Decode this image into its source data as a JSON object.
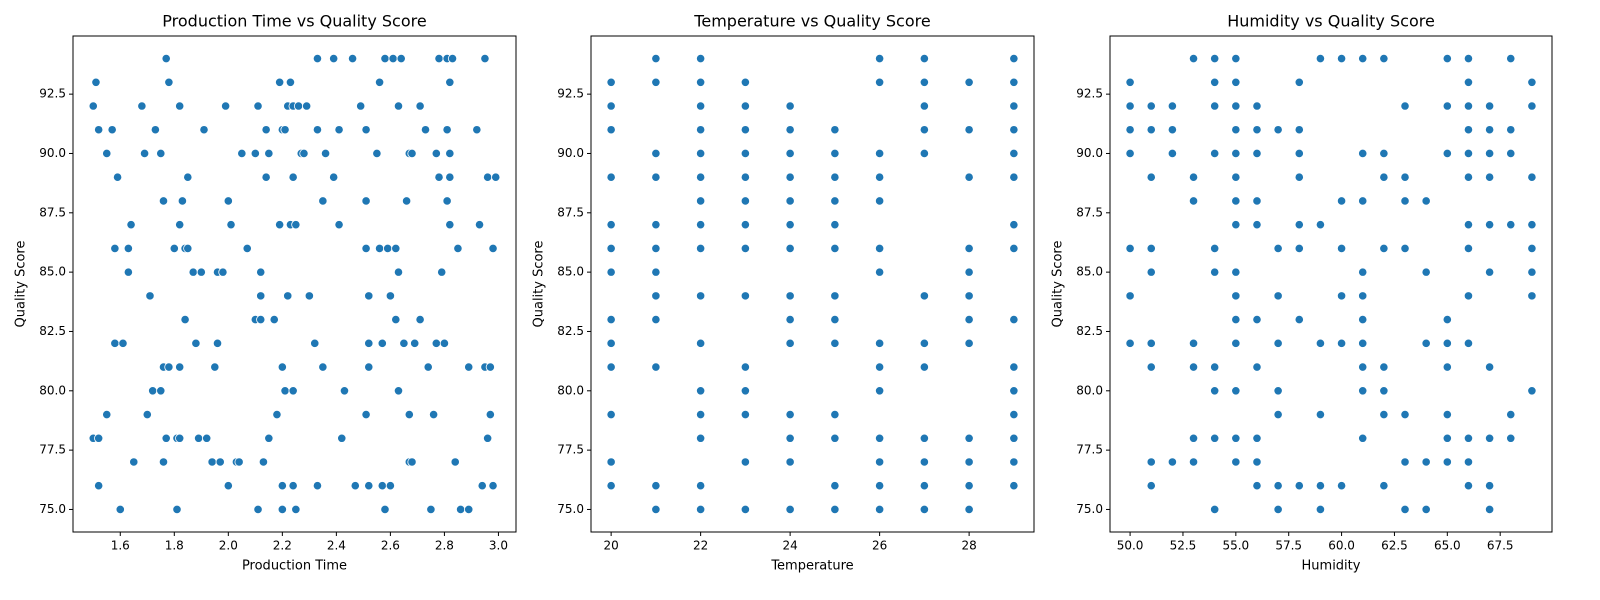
{
  "chart_data": [
    {
      "type": "scatter",
      "title": "Production Time vs Quality Score",
      "x_label": "Production Time",
      "y_label": "Quality Score",
      "color": "#1f77b4",
      "x": [
        1.5,
        1.51,
        1.52,
        1.55,
        1.57,
        1.59,
        1.58,
        1.63,
        1.64,
        1.63,
        1.58,
        1.61,
        1.55,
        1.5,
        1.52,
        1.52,
        1.6,
        1.65,
        1.68,
        1.69,
        1.71,
        1.72,
        1.7,
        1.73,
        1.75,
        1.76,
        1.77,
        1.78,
        1.8,
        1.76,
        1.78,
        1.75,
        1.76,
        1.77,
        1.81,
        1.82,
        1.81,
        1.82,
        1.82,
        1.83,
        1.82,
        1.84,
        1.85,
        1.85,
        1.84,
        1.87,
        1.88,
        1.89,
        1.91,
        1.9,
        1.92,
        1.94,
        1.95,
        1.96,
        1.96,
        1.97,
        1.98,
        1.99,
        2.0,
        2.01,
        2.0,
        2.03,
        2.04,
        2.05,
        2.07,
        2.1,
        2.1,
        2.11,
        2.11,
        2.12,
        2.12,
        2.12,
        2.13,
        2.14,
        2.14,
        2.15,
        2.15,
        2.17,
        2.18,
        2.19,
        2.19,
        2.2,
        2.21,
        2.2,
        2.21,
        2.2,
        2.2,
        2.22,
        2.22,
        2.23,
        2.23,
        2.24,
        2.24,
        2.24,
        2.24,
        2.25,
        2.25,
        2.26,
        2.27,
        2.28,
        2.29,
        2.3,
        2.32,
        2.33,
        2.33,
        2.33,
        2.35,
        2.35,
        2.36,
        2.39,
        2.39,
        2.41,
        2.41,
        2.42,
        2.43,
        2.46,
        2.47,
        2.49,
        2.51,
        2.51,
        2.51,
        2.52,
        2.52,
        2.52,
        2.51,
        2.52,
        2.55,
        2.56,
        2.56,
        2.57,
        2.57,
        2.58,
        2.58,
        2.59,
        2.6,
        2.6,
        2.61,
        2.62,
        2.62,
        2.63,
        2.63,
        2.63,
        2.64,
        2.65,
        2.66,
        2.67,
        2.68,
        2.67,
        2.67,
        2.68,
        2.69,
        2.71,
        2.71,
        2.73,
        2.74,
        2.75,
        2.76,
        2.77,
        2.77,
        2.78,
        2.78,
        2.79,
        2.8,
        2.81,
        2.81,
        2.81,
        2.82,
        2.82,
        2.82,
        2.82,
        2.83,
        2.84,
        2.85,
        2.86,
        2.89,
        2.89,
        2.92,
        2.93,
        2.94,
        2.95,
        2.95,
        2.96,
        2.96,
        2.97,
        2.97,
        2.98,
        2.98,
        2.99
      ],
      "values": [
        92,
        93,
        91,
        90,
        91,
        89,
        86,
        86,
        87,
        85,
        82,
        82,
        79,
        78,
        78,
        76,
        75,
        77,
        92,
        90,
        84,
        80,
        79,
        91,
        90,
        88,
        94,
        93,
        86,
        81,
        81,
        80,
        77,
        78,
        78,
        78,
        75,
        81,
        92,
        88,
        87,
        86,
        86,
        89,
        83,
        85,
        82,
        78,
        91,
        85,
        78,
        77,
        81,
        82,
        85,
        77,
        85,
        92,
        88,
        87,
        76,
        77,
        77,
        90,
        86,
        90,
        83,
        92,
        75,
        85,
        84,
        83,
        77,
        89,
        91,
        78,
        90,
        83,
        79,
        93,
        87,
        91,
        91,
        81,
        80,
        76,
        75,
        92,
        84,
        93,
        87,
        89,
        92,
        76,
        80,
        87,
        75,
        92,
        90,
        90,
        92,
        84,
        82,
        91,
        76,
        94,
        88,
        81,
        90,
        94,
        89,
        91,
        87,
        78,
        80,
        94,
        76,
        92,
        88,
        86,
        91,
        84,
        82,
        81,
        79,
        76,
        90,
        93,
        86,
        82,
        76,
        94,
        75,
        86,
        84,
        76,
        94,
        83,
        86,
        85,
        80,
        92,
        94,
        82,
        88,
        90,
        90,
        79,
        77,
        77,
        82,
        83,
        92,
        91,
        81,
        75,
        79,
        90,
        82,
        89,
        94,
        85,
        82,
        94,
        91,
        88,
        87,
        93,
        89,
        90,
        94,
        77,
        86,
        75,
        81,
        75,
        91,
        87,
        76,
        81,
        94,
        89,
        78,
        81,
        79,
        86,
        76,
        89
      ],
      "xlim": [
        1.425,
        3.065
      ],
      "ylim": [
        74.05,
        94.95
      ],
      "xticks": [
        1.6,
        1.8,
        {
          "value": 2.0,
          "label": "2.0"
        },
        2.2,
        2.4,
        2.6,
        2.8,
        {
          "value": 3.0,
          "label": "3.0"
        }
      ],
      "yticks": [
        {
          "value": 75,
          "label": "75.0"
        },
        77.5,
        {
          "value": 80,
          "label": "80.0"
        },
        82.5,
        {
          "value": 85,
          "label": "85.0"
        },
        87.5,
        {
          "value": 90,
          "label": "90.0"
        },
        92.5
      ]
    },
    {
      "type": "scatter",
      "title": "Temperature vs Quality Score",
      "x_label": "Temperature",
      "y_label": "Quality Score",
      "color": "#1f77b4",
      "x": [
        20,
        20,
        20,
        20,
        20,
        20,
        20,
        20,
        20,
        20,
        20,
        20,
        20,
        21,
        21,
        21,
        21,
        21,
        21,
        21,
        21,
        21,
        21,
        21,
        21,
        22,
        22,
        22,
        22,
        22,
        22,
        22,
        22,
        22,
        22,
        22,
        22,
        22,
        22,
        22,
        22,
        23,
        23,
        23,
        23,
        23,
        23,
        23,
        23,
        23,
        23,
        23,
        23,
        23,
        23,
        24,
        24,
        24,
        24,
        24,
        24,
        24,
        24,
        24,
        24,
        24,
        24,
        24,
        24,
        25,
        25,
        25,
        25,
        25,
        25,
        25,
        25,
        25,
        25,
        25,
        25,
        25,
        26,
        26,
        26,
        26,
        26,
        26,
        26,
        26,
        26,
        26,
        26,
        26,
        26,
        26,
        27,
        27,
        27,
        27,
        27,
        27,
        27,
        27,
        27,
        27,
        27,
        27,
        28,
        28,
        28,
        28,
        28,
        28,
        28,
        28,
        28,
        28,
        28,
        28,
        29,
        29,
        29,
        29,
        29,
        29,
        29,
        29,
        29,
        29,
        29,
        29,
        29,
        29,
        29
      ],
      "values": [
        93,
        92,
        91,
        89,
        87,
        86,
        85,
        83,
        82,
        81,
        79,
        77,
        76,
        94,
        93,
        90,
        89,
        87,
        86,
        85,
        84,
        83,
        81,
        76,
        75,
        94,
        93,
        92,
        91,
        90,
        89,
        88,
        87,
        86,
        84,
        82,
        80,
        79,
        78,
        76,
        75,
        93,
        92,
        91,
        90,
        89,
        88,
        87,
        86,
        84,
        81,
        80,
        79,
        77,
        75,
        92,
        91,
        90,
        89,
        88,
        87,
        86,
        84,
        83,
        82,
        79,
        78,
        77,
        75,
        91,
        90,
        89,
        88,
        87,
        86,
        84,
        83,
        82,
        79,
        78,
        76,
        75,
        94,
        93,
        90,
        89,
        88,
        86,
        85,
        82,
        81,
        80,
        78,
        77,
        76,
        75,
        94,
        93,
        92,
        91,
        90,
        84,
        82,
        81,
        78,
        77,
        76,
        75,
        93,
        91,
        89,
        86,
        85,
        84,
        83,
        82,
        78,
        77,
        76,
        75,
        94,
        93,
        92,
        91,
        90,
        89,
        87,
        86,
        83,
        81,
        80,
        79,
        78,
        77,
        76
      ],
      "xlim": [
        19.55,
        29.45
      ],
      "ylim": [
        74.05,
        94.95
      ],
      "xticks": [
        20,
        22,
        24,
        26,
        28
      ],
      "yticks": [
        {
          "value": 75,
          "label": "75.0"
        },
        77.5,
        {
          "value": 80,
          "label": "80.0"
        },
        82.5,
        {
          "value": 85,
          "label": "85.0"
        },
        87.5,
        {
          "value": 90,
          "label": "90.0"
        },
        92.5
      ]
    },
    {
      "type": "scatter",
      "title": "Humidity vs Quality Score",
      "x_label": "Humidity",
      "y_label": "Quality Score",
      "color": "#1f77b4",
      "x": [
        50,
        50,
        50,
        50,
        50,
        50,
        50,
        51,
        51,
        51,
        51,
        51,
        51,
        51,
        51,
        51,
        52,
        52,
        52,
        52,
        53,
        53,
        53,
        53,
        53,
        53,
        53,
        54,
        54,
        54,
        54,
        54,
        54,
        54,
        54,
        54,
        54,
        55,
        55,
        55,
        55,
        55,
        55,
        55,
        55,
        55,
        55,
        55,
        55,
        55,
        55,
        55,
        56,
        56,
        56,
        56,
        56,
        56,
        56,
        56,
        56,
        56,
        57,
        57,
        57,
        57,
        57,
        57,
        57,
        57,
        58,
        58,
        58,
        58,
        58,
        58,
        58,
        58,
        59,
        59,
        59,
        59,
        59,
        59,
        60,
        60,
        60,
        60,
        60,
        60,
        61,
        61,
        61,
        61,
        61,
        61,
        61,
        61,
        61,
        61,
        62,
        62,
        62,
        62,
        62,
        62,
        62,
        62,
        63,
        63,
        63,
        63,
        63,
        63,
        63,
        64,
        64,
        64,
        64,
        64,
        65,
        65,
        65,
        65,
        65,
        65,
        65,
        65,
        65,
        66,
        66,
        66,
        66,
        66,
        66,
        66,
        66,
        66,
        66,
        66,
        66,
        66,
        67,
        67,
        67,
        67,
        67,
        67,
        67,
        67,
        67,
        67,
        68,
        68,
        68,
        68,
        68,
        68,
        69,
        69,
        69,
        69,
        69,
        69,
        69,
        69
      ],
      "values": [
        93,
        92,
        91,
        90,
        86,
        84,
        82,
        92,
        91,
        89,
        86,
        85,
        82,
        81,
        77,
        76,
        92,
        91,
        90,
        77,
        94,
        89,
        88,
        82,
        81,
        78,
        77,
        94,
        93,
        92,
        90,
        86,
        85,
        81,
        80,
        78,
        75,
        94,
        93,
        92,
        91,
        90,
        89,
        88,
        87,
        85,
        84,
        83,
        82,
        80,
        78,
        77,
        92,
        91,
        90,
        88,
        87,
        83,
        81,
        78,
        77,
        76,
        91,
        86,
        84,
        82,
        80,
        79,
        76,
        75,
        93,
        91,
        90,
        89,
        87,
        86,
        83,
        76,
        94,
        87,
        82,
        79,
        76,
        75,
        94,
        88,
        86,
        84,
        82,
        76,
        94,
        90,
        88,
        85,
        84,
        83,
        82,
        81,
        80,
        78,
        94,
        90,
        89,
        86,
        81,
        80,
        79,
        76,
        92,
        89,
        88,
        86,
        79,
        77,
        75,
        88,
        85,
        82,
        77,
        75,
        94,
        92,
        90,
        83,
        82,
        81,
        79,
        78,
        77,
        94,
        93,
        92,
        91,
        90,
        89,
        87,
        86,
        84,
        82,
        78,
        77,
        76,
        92,
        91,
        90,
        89,
        87,
        85,
        81,
        78,
        76,
        75,
        94,
        91,
        90,
        87,
        79,
        78,
        93,
        92,
        89,
        87,
        86,
        85,
        84,
        80
      ],
      "xlim": [
        49.05,
        69.95
      ],
      "ylim": [
        74.05,
        94.95
      ],
      "xticks": [
        {
          "value": 50,
          "label": "50.0"
        },
        52.5,
        {
          "value": 55,
          "label": "55.0"
        },
        57.5,
        {
          "value": 60,
          "label": "60.0"
        },
        62.5,
        {
          "value": 65,
          "label": "65.0"
        },
        67.5
      ],
      "yticks": [
        {
          "value": 75,
          "label": "75.0"
        },
        77.5,
        {
          "value": 80,
          "label": "80.0"
        },
        82.5,
        {
          "value": 85,
          "label": "85.0"
        },
        87.5,
        {
          "value": 90,
          "label": "90.0"
        },
        92.5
      ]
    }
  ]
}
